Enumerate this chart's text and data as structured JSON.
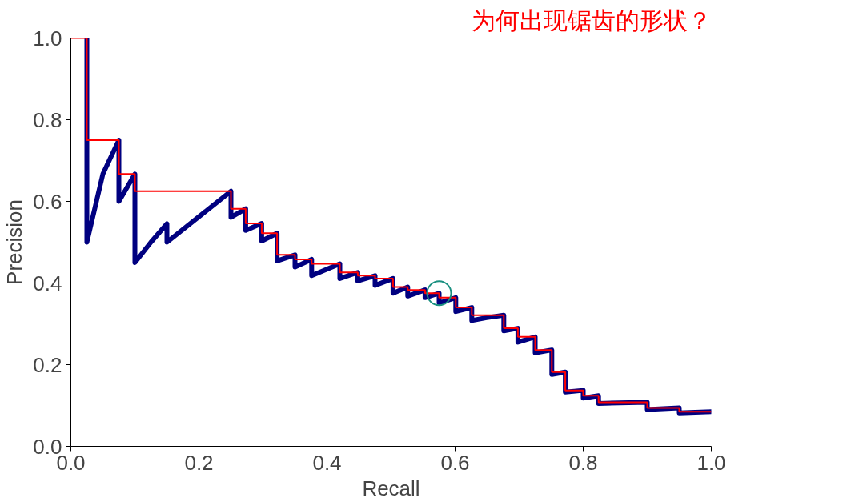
{
  "chart_data": {
    "type": "line",
    "title": "为何出现锯齿的形状？",
    "xlabel": "Recall",
    "ylabel": "Precision",
    "xlim": [
      0,
      1
    ],
    "ylim": [
      0,
      1
    ],
    "xticks": [
      {
        "value": 0,
        "label": "0.0"
      },
      0.2,
      0.4,
      0.6,
      0.8,
      {
        "value": 1,
        "label": "1.0"
      }
    ],
    "yticks": [
      {
        "value": 0,
        "label": "0.0"
      },
      0.2,
      0.4,
      0.6,
      0.8,
      {
        "value": 1,
        "label": "1.0"
      }
    ],
    "grid": false,
    "series": [
      {
        "color": "#000080",
        "x": [
          0.025,
          0.025,
          0.05,
          0.075,
          0.075,
          0.1,
          0.1,
          0.125,
          0.15,
          0.15,
          0.25,
          0.25,
          0.273,
          0.273,
          0.298,
          0.298,
          0.322,
          0.322,
          0.35,
          0.35,
          0.376,
          0.376,
          0.42,
          0.42,
          0.448,
          0.448,
          0.475,
          0.475,
          0.503,
          0.503,
          0.526,
          0.526,
          0.553,
          0.553,
          0.575,
          0.575,
          0.601,
          0.601,
          0.626,
          0.626,
          0.649,
          0.676,
          0.676,
          0.698,
          0.698,
          0.725,
          0.725,
          0.751,
          0.751,
          0.772,
          0.772,
          0.8,
          0.8,
          0.824,
          0.824,
          0.9,
          0.9,
          0.95,
          0.95,
          1.0
        ],
        "values": [
          1.0,
          0.5,
          0.667,
          0.75,
          0.6,
          0.667,
          0.45,
          0.5,
          0.545,
          0.5,
          0.625,
          0.561,
          0.582,
          0.529,
          0.546,
          0.503,
          0.522,
          0.454,
          0.469,
          0.439,
          0.458,
          0.418,
          0.447,
          0.411,
          0.426,
          0.405,
          0.418,
          0.394,
          0.411,
          0.375,
          0.39,
          0.368,
          0.383,
          0.364,
          0.375,
          0.351,
          0.364,
          0.33,
          0.34,
          0.308,
          0.315,
          0.321,
          0.283,
          0.289,
          0.255,
          0.268,
          0.229,
          0.236,
          0.176,
          0.182,
          0.133,
          0.137,
          0.118,
          0.124,
          0.105,
          0.108,
          0.09,
          0.094,
          0.082,
          0.085
        ]
      },
      {
        "type": "step",
        "color": "#ff0000",
        "x": [
          0,
          0.025,
          0.075,
          0.1,
          0.25,
          0.273,
          0.298,
          0.322,
          0.35,
          0.376,
          0.42,
          0.448,
          0.475,
          0.503,
          0.526,
          0.553,
          0.575,
          0.601,
          0.626,
          0.676,
          0.698,
          0.725,
          0.751,
          0.772,
          0.8,
          0.824,
          0.9,
          0.95,
          1.0
        ],
        "values": [
          1.0,
          0.75,
          0.667,
          0.625,
          0.582,
          0.546,
          0.522,
          0.469,
          0.458,
          0.447,
          0.426,
          0.418,
          0.411,
          0.39,
          0.383,
          0.375,
          0.364,
          0.34,
          0.321,
          0.289,
          0.268,
          0.236,
          0.182,
          0.137,
          0.124,
          0.108,
          0.094,
          0.085,
          0.085
        ]
      },
      {
        "type": "scatter",
        "marker": "circle",
        "color": "#1a9080",
        "x": [
          0.575
        ],
        "values": [
          0.375
        ]
      }
    ]
  }
}
